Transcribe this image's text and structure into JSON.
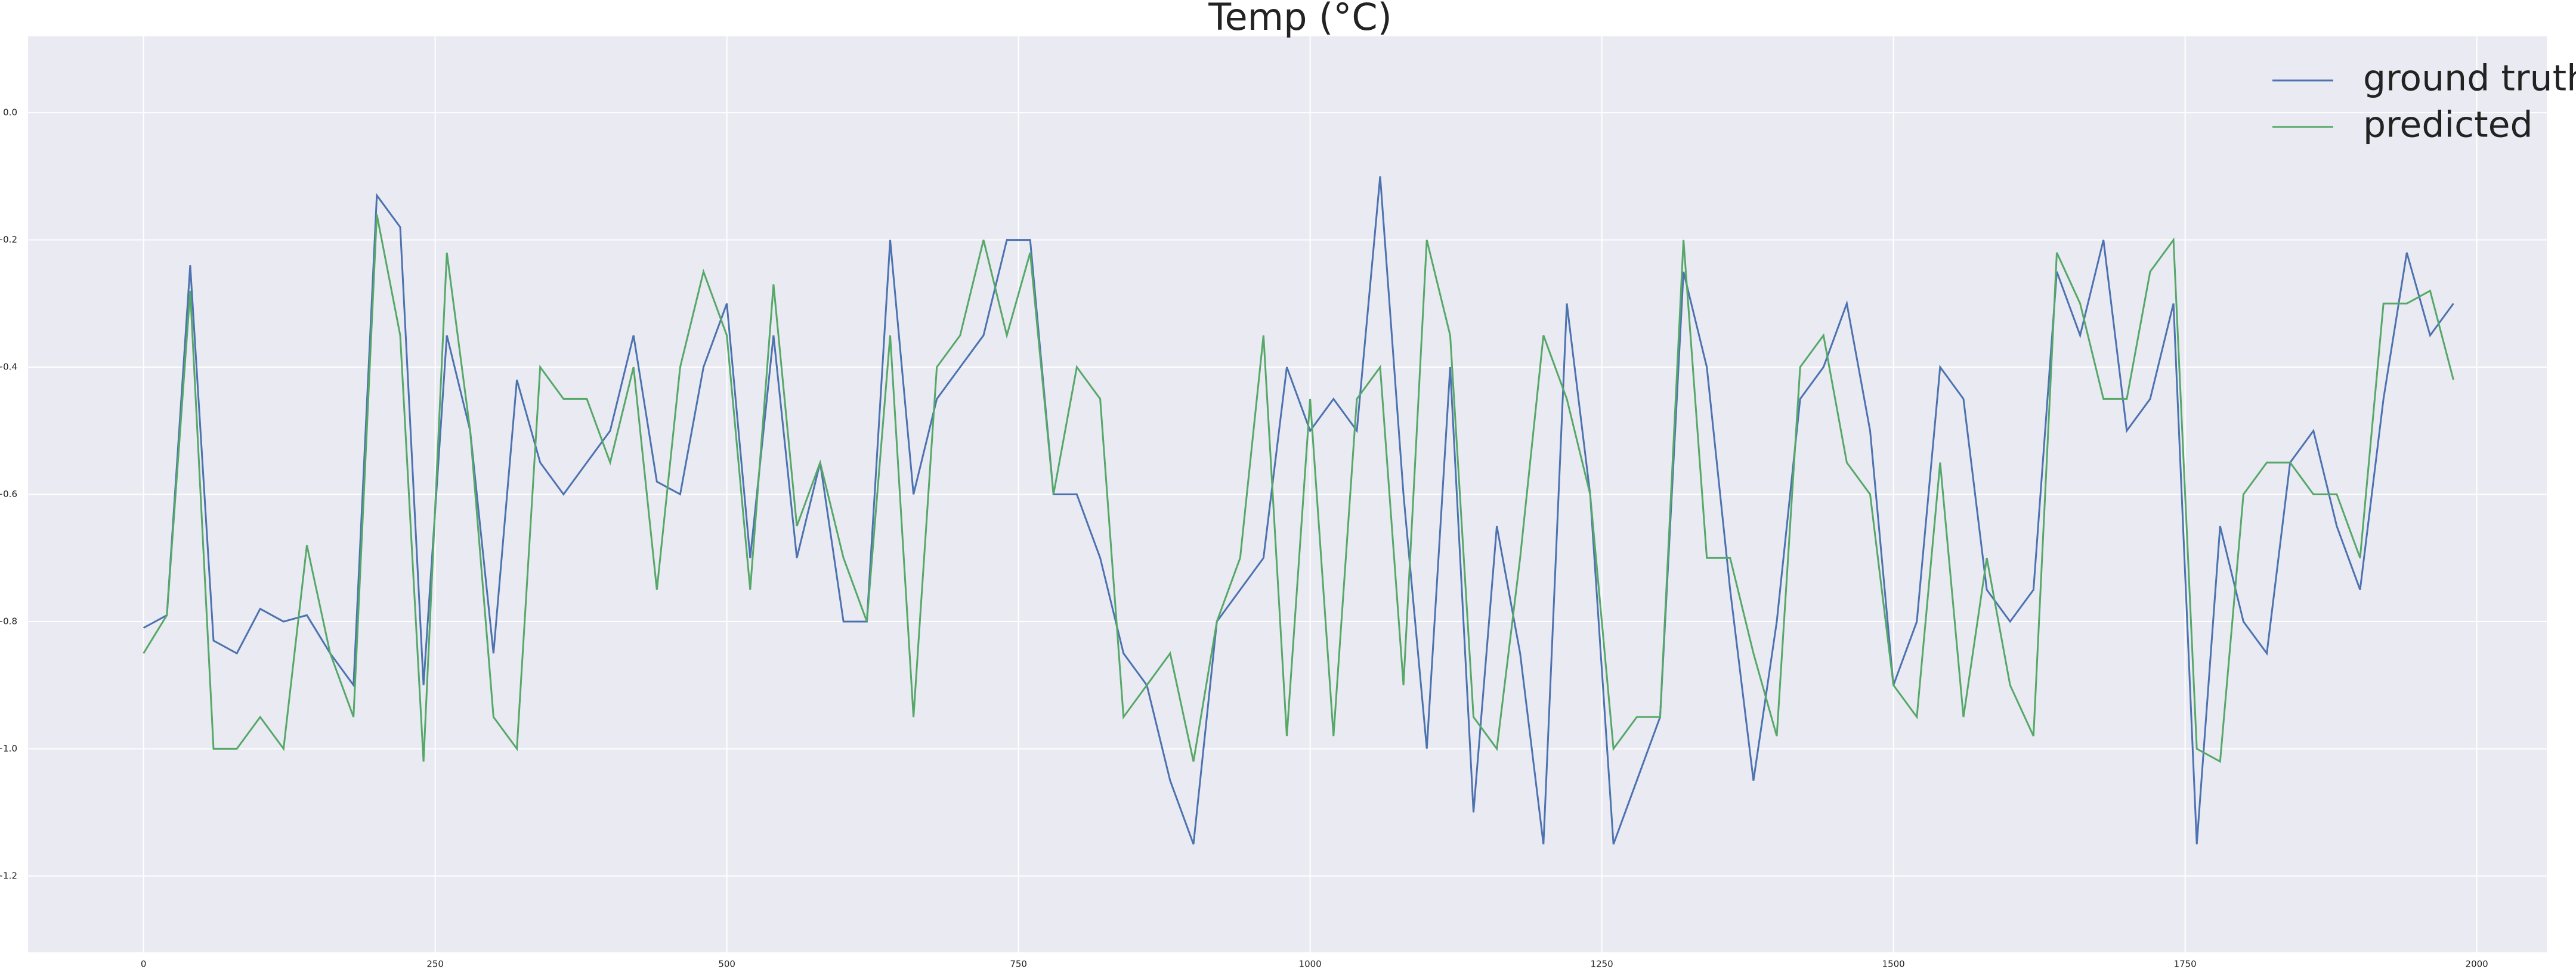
{
  "chart_data": {
    "type": "line",
    "title": "Temp (°C)",
    "x": [
      0,
      20,
      40,
      60,
      80,
      100,
      120,
      140,
      160,
      180,
      200,
      220,
      240,
      260,
      280,
      300,
      320,
      340,
      360,
      380,
      400,
      420,
      440,
      460,
      480,
      500,
      520,
      540,
      560,
      580,
      600,
      620,
      640,
      660,
      680,
      700,
      720,
      740,
      760,
      780,
      800,
      820,
      840,
      860,
      880,
      900,
      920,
      940,
      960,
      980,
      1000,
      1020,
      1040,
      1060,
      1080,
      1100,
      1120,
      1140,
      1160,
      1180,
      1200,
      1220,
      1240,
      1260,
      1280,
      1300,
      1320,
      1340,
      1360,
      1380,
      1400,
      1420,
      1440,
      1460,
      1480,
      1500,
      1520,
      1540,
      1560,
      1580,
      1600,
      1620,
      1640,
      1660,
      1680,
      1700,
      1720,
      1740,
      1760,
      1780,
      1800,
      1820,
      1840,
      1860,
      1880,
      1900,
      1920,
      1940,
      1960,
      1980
    ],
    "series": [
      {
        "name": "ground truth",
        "color": "#4c72b0",
        "values": [
          -0.81,
          -0.79,
          -0.24,
          -0.83,
          -0.85,
          -0.78,
          -0.8,
          -0.79,
          -0.85,
          -0.9,
          -0.13,
          -0.18,
          -0.9,
          -0.35,
          -0.5,
          -0.85,
          -0.42,
          -0.55,
          -0.6,
          -0.55,
          -0.5,
          -0.35,
          -0.58,
          -0.6,
          -0.4,
          -0.3,
          -0.7,
          -0.35,
          -0.7,
          -0.55,
          -0.8,
          -0.8,
          -0.2,
          -0.6,
          -0.45,
          -0.4,
          -0.35,
          -0.2,
          -0.2,
          -0.6,
          -0.6,
          -0.7,
          -0.85,
          -0.9,
          -1.05,
          -1.15,
          -0.8,
          -0.75,
          -0.7,
          -0.4,
          -0.5,
          -0.45,
          -0.5,
          -0.1,
          -0.6,
          -1.0,
          -0.4,
          -1.1,
          -0.65,
          -0.85,
          -1.15,
          -0.3,
          -0.6,
          -1.15,
          -1.05,
          -0.95,
          -0.25,
          -0.4,
          -0.75,
          -1.05,
          -0.8,
          -0.45,
          -0.4,
          -0.3,
          -0.5,
          -0.9,
          -0.8,
          -0.4,
          -0.45,
          -0.75,
          -0.8,
          -0.75,
          -0.25,
          -0.35,
          -0.2,
          -0.5,
          -0.45,
          -0.3,
          -1.15,
          -0.65,
          -0.8,
          -0.85,
          -0.55,
          -0.5,
          -0.65,
          -0.75,
          -0.45,
          -0.22,
          -0.35,
          -0.3
        ]
      },
      {
        "name": "predicted",
        "color": "#55a868",
        "values": [
          -0.85,
          -0.79,
          -0.28,
          -1.0,
          -1.0,
          -0.95,
          -1.0,
          -0.68,
          -0.85,
          -0.95,
          -0.16,
          -0.35,
          -1.02,
          -0.22,
          -0.5,
          -0.95,
          -1.0,
          -0.4,
          -0.45,
          -0.45,
          -0.55,
          -0.4,
          -0.75,
          -0.4,
          -0.25,
          -0.35,
          -0.75,
          -0.27,
          -0.65,
          -0.55,
          -0.7,
          -0.8,
          -0.35,
          -0.95,
          -0.4,
          -0.35,
          -0.2,
          -0.35,
          -0.22,
          -0.6,
          -0.4,
          -0.45,
          -0.95,
          -0.9,
          -0.85,
          -1.02,
          -0.8,
          -0.7,
          -0.35,
          -0.98,
          -0.45,
          -0.98,
          -0.45,
          -0.4,
          -0.9,
          -0.2,
          -0.35,
          -0.95,
          -1.0,
          -0.7,
          -0.35,
          -0.45,
          -0.6,
          -1.0,
          -0.95,
          -0.95,
          -0.2,
          -0.7,
          -0.7,
          -0.85,
          -0.98,
          -0.4,
          -0.35,
          -0.55,
          -0.6,
          -0.9,
          -0.95,
          -0.55,
          -0.95,
          -0.7,
          -0.9,
          -0.98,
          -0.22,
          -0.3,
          -0.45,
          -0.45,
          -0.25,
          -0.2,
          -1.0,
          -1.02,
          -0.6,
          -0.55,
          -0.55,
          -0.6,
          -0.6,
          -0.7,
          -0.3,
          -0.3,
          -0.28,
          -0.42
        ]
      }
    ],
    "xlim": [
      -99,
      2060
    ],
    "ylim": [
      -1.32,
      0.12
    ],
    "xticks": [
      0,
      250,
      500,
      750,
      1000,
      1250,
      1500,
      1750,
      2000
    ],
    "yticks": [
      {
        "value": -1.2,
        "label": "−1.2"
      },
      {
        "value": -1.0,
        "label": "−1.0"
      },
      {
        "value": -0.8,
        "label": "−0.8"
      },
      {
        "value": -0.6,
        "label": "−0.6"
      },
      {
        "value": -0.4,
        "label": "−0.4"
      },
      {
        "value": -0.2,
        "label": "−0.2"
      },
      {
        "value": 0,
        "label": "0.0"
      }
    ],
    "grid": true,
    "legend": "upper right"
  }
}
